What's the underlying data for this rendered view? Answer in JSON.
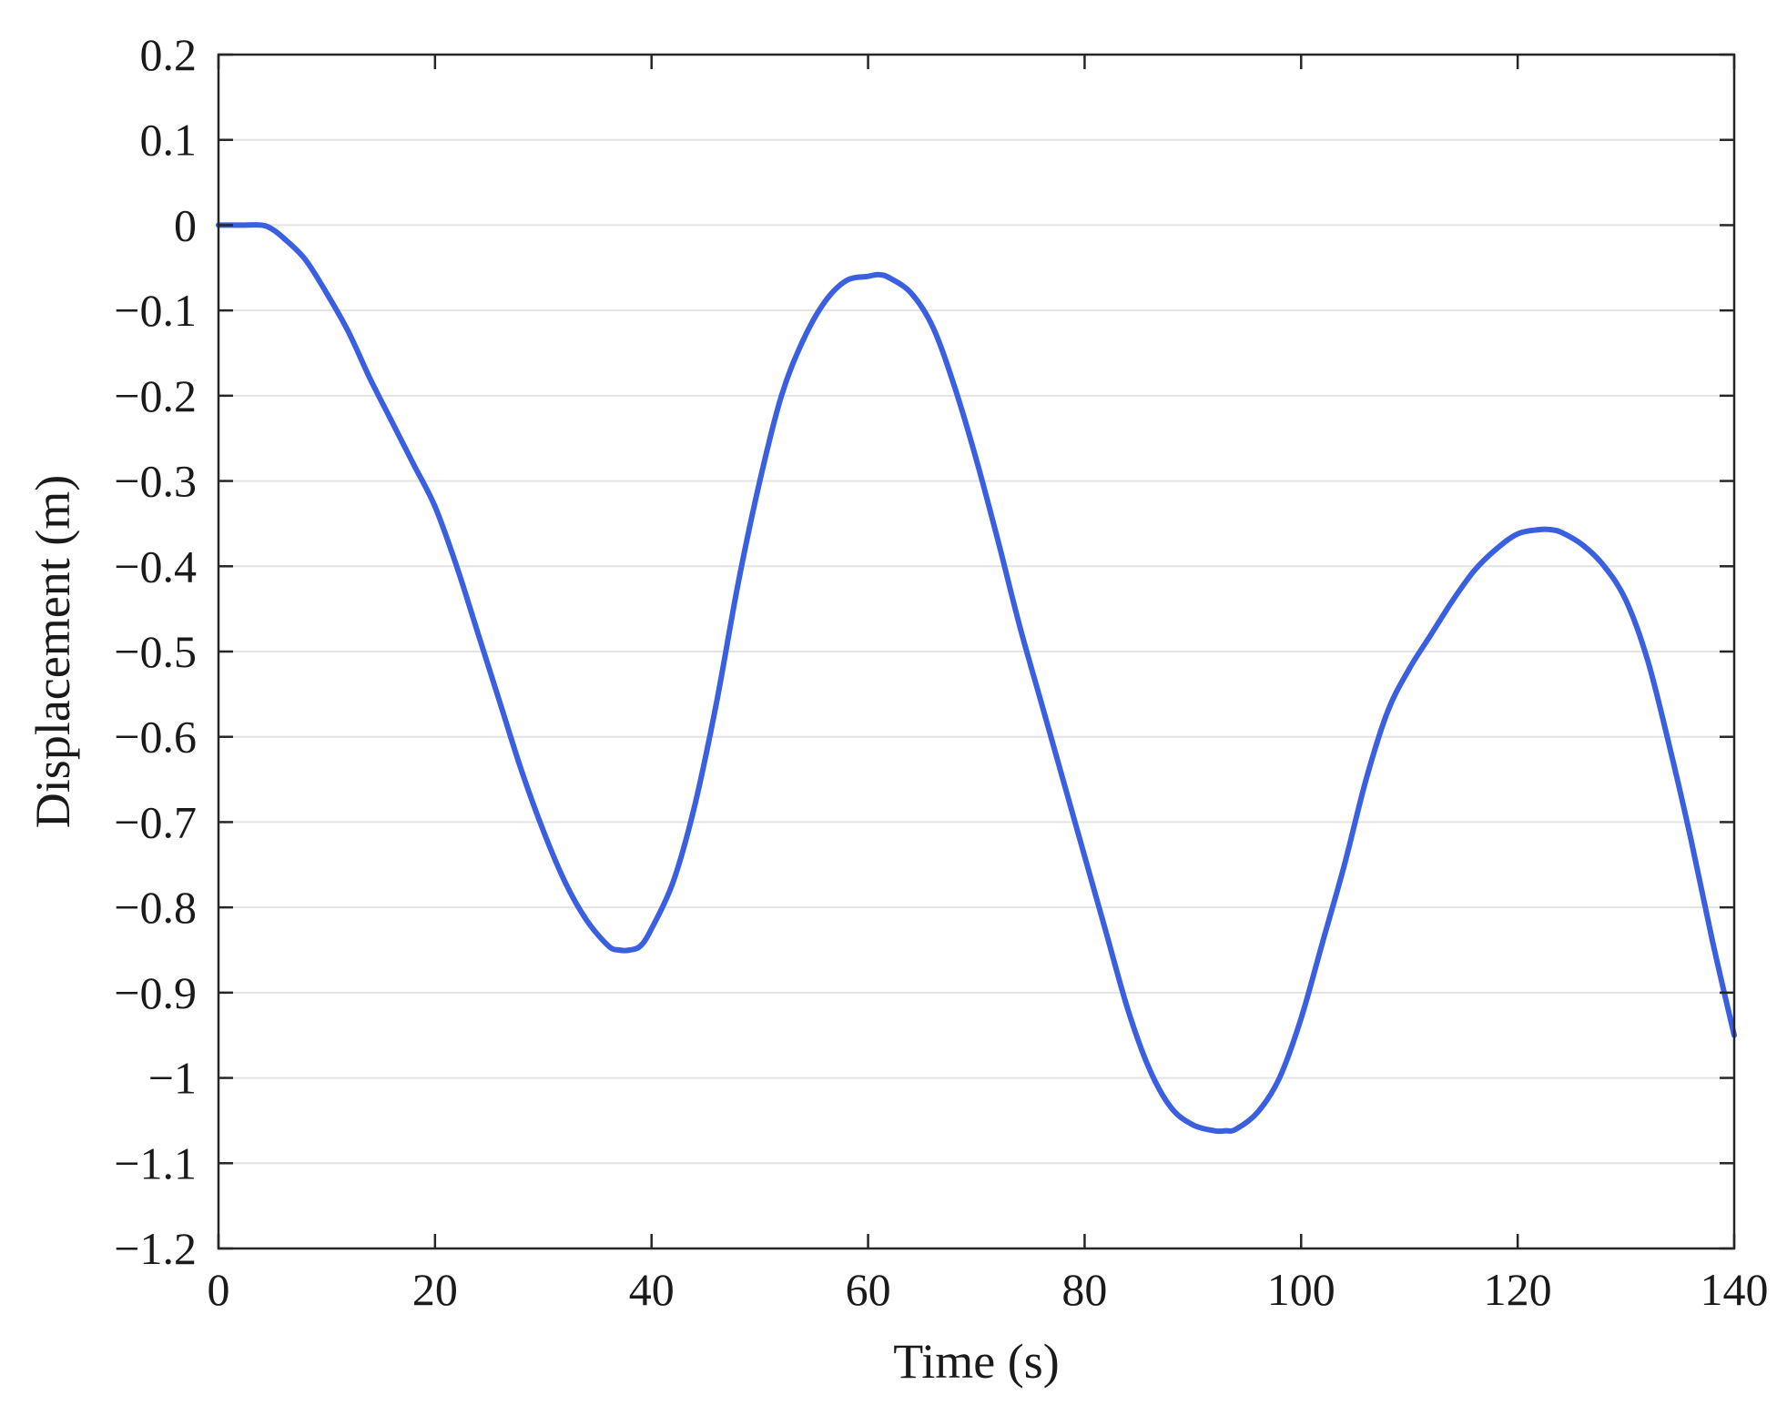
{
  "chart_data": {
    "type": "line",
    "title": "",
    "xlabel": "Time (s)",
    "ylabel": "Displacement (m)",
    "xlim": [
      0,
      140
    ],
    "ylim": [
      -1.2,
      0.2
    ],
    "xticks": [
      0,
      20,
      40,
      60,
      80,
      100,
      120,
      140
    ],
    "xtick_labels": [
      "0",
      "20",
      "40",
      "60",
      "80",
      "100",
      "120",
      "140"
    ],
    "yticks": [
      0.2,
      0.1,
      0,
      -0.1,
      -0.2,
      -0.3,
      -0.4,
      -0.5,
      -0.6,
      -0.7,
      -0.8,
      -0.9,
      -1,
      -1.1,
      -1.2
    ],
    "ytick_labels": [
      "0.2",
      "0.1",
      "0",
      "−0.1",
      "−0.2",
      "−0.3",
      "−0.4",
      "−0.5",
      "−0.6",
      "−0.7",
      "−0.8",
      "−0.9",
      "−1",
      "−1.1",
      "−1.2"
    ],
    "grid": "horizontal",
    "legend": "none",
    "line_color": "#3a5fe0",
    "series": [
      {
        "x": [
          0,
          2,
          4,
          5,
          6,
          8,
          10,
          12,
          14,
          16,
          18,
          20,
          22,
          24,
          26,
          28,
          30,
          32,
          34,
          36,
          37,
          38,
          39,
          40,
          42,
          44,
          46,
          48,
          50,
          52,
          54,
          56,
          58,
          60,
          61,
          62,
          64,
          66,
          68,
          70,
          72,
          74,
          76,
          78,
          80,
          82,
          84,
          86,
          88,
          90,
          92,
          93,
          94,
          96,
          98,
          100,
          102,
          104,
          106,
          108,
          110,
          112,
          114,
          116,
          118,
          120,
          122,
          123,
          124,
          126,
          128,
          130,
          132,
          134,
          136,
          138,
          140
        ],
        "y": [
          0,
          0,
          0,
          -0.005,
          -0.015,
          -0.04,
          -0.08,
          -0.125,
          -0.18,
          -0.23,
          -0.28,
          -0.33,
          -0.4,
          -0.48,
          -0.56,
          -0.64,
          -0.71,
          -0.77,
          -0.815,
          -0.845,
          -0.85,
          -0.85,
          -0.845,
          -0.825,
          -0.77,
          -0.68,
          -0.56,
          -0.42,
          -0.3,
          -0.2,
          -0.135,
          -0.09,
          -0.065,
          -0.06,
          -0.058,
          -0.062,
          -0.08,
          -0.12,
          -0.19,
          -0.275,
          -0.37,
          -0.47,
          -0.56,
          -0.65,
          -0.74,
          -0.83,
          -0.92,
          -0.99,
          -1.035,
          -1.055,
          -1.062,
          -1.062,
          -1.06,
          -1.04,
          -1.0,
          -0.93,
          -0.84,
          -0.75,
          -0.65,
          -0.57,
          -0.52,
          -0.48,
          -0.44,
          -0.405,
          -0.38,
          -0.362,
          -0.357,
          -0.357,
          -0.36,
          -0.375,
          -0.4,
          -0.44,
          -0.51,
          -0.61,
          -0.72,
          -0.84,
          -0.95
        ]
      }
    ]
  }
}
